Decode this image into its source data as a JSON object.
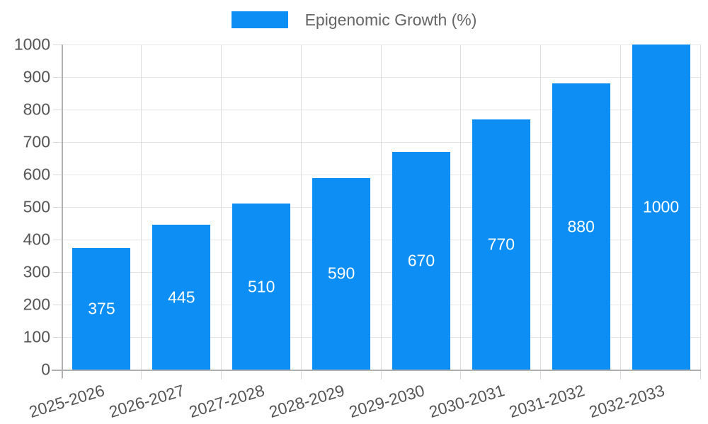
{
  "chart_data": {
    "type": "bar",
    "title": "",
    "legend": {
      "label": "Epigenomic Growth (%)",
      "position": "top"
    },
    "categories": [
      "2025-2026",
      "2026-2027",
      "2027-2028",
      "2028-2029",
      "2029-2030",
      "2030-2031",
      "2031-2032",
      "2032-2033"
    ],
    "values": [
      375,
      445,
      510,
      590,
      670,
      770,
      880,
      1000
    ],
    "xlabel": "",
    "ylabel": "",
    "ylim": [
      0,
      1000
    ],
    "ytick_step": 100,
    "grid": true,
    "bar_value_labels": true,
    "x_label_rotation_deg": -17
  },
  "colors": {
    "bar": "#0d8ef4",
    "bar_value_label": "#ffffff",
    "gridline_h": "#e6e6e6",
    "gridline_v": "#dedede",
    "tick": "#d9d9d9",
    "axis_line": "#b0b0b0",
    "axis_text": "#555555",
    "legend_text": "#666666",
    "background": "#ffffff"
  }
}
